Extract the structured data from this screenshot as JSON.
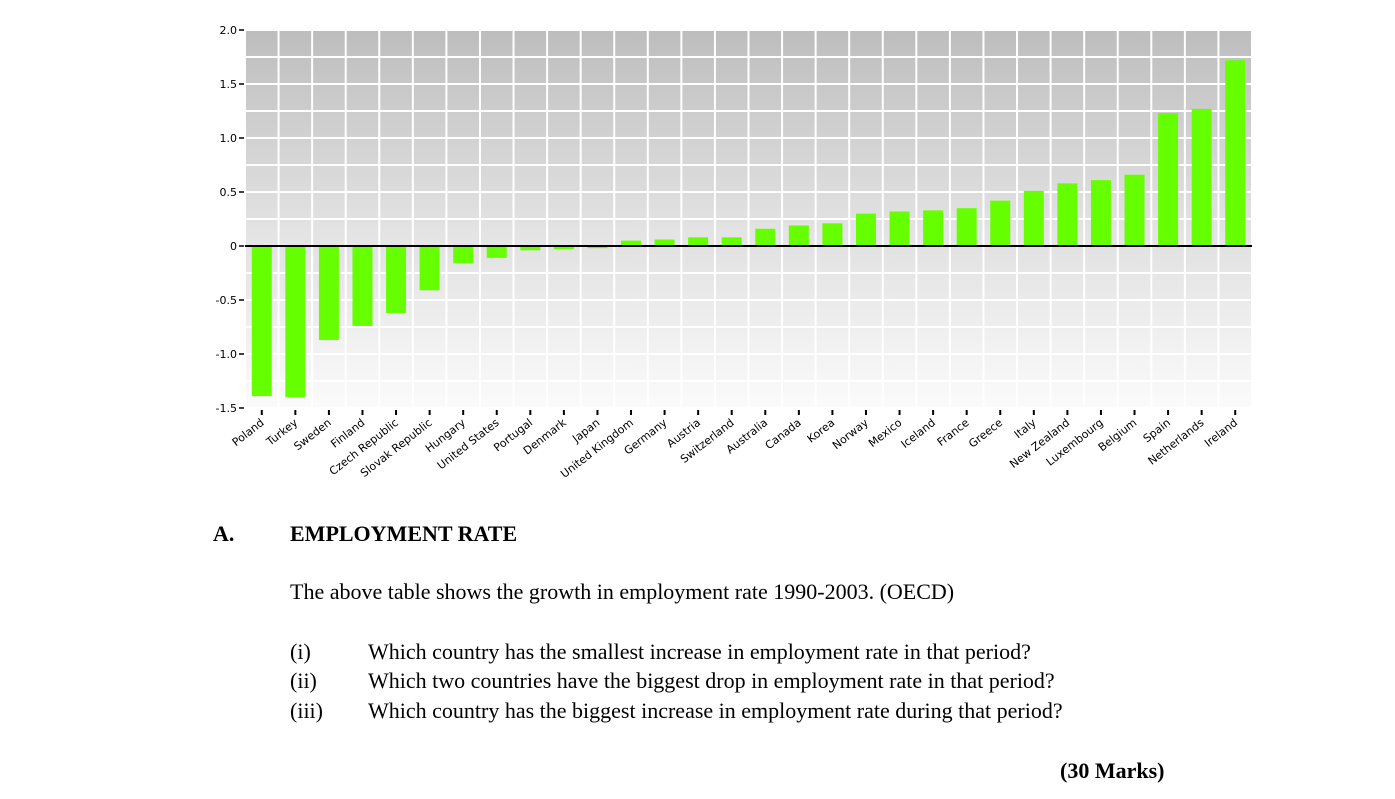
{
  "chart_data": {
    "type": "bar",
    "title": "",
    "xlabel": "",
    "ylabel": "",
    "ylim": [
      -1.5,
      2.0
    ],
    "yticks": [
      "2.0",
      "1.5",
      "1.0",
      "0.5",
      "0",
      "-0.5",
      "-1.0",
      "-1.5"
    ],
    "ytick_values": [
      2.0,
      1.5,
      1.0,
      0.5,
      0,
      -0.5,
      -1.0,
      -1.5
    ],
    "grid": true,
    "bar_color": "#66ff00",
    "categories": [
      "Poland",
      "Turkey",
      "Sweden",
      "Finland",
      "Czech Republic",
      "Slovak Republic",
      "Hungary",
      "United States",
      "Portugal",
      "Denmark",
      "Japan",
      "United Kingdom",
      "Germany",
      "Austria",
      "Switzerland",
      "Australia",
      "Canada",
      "Korea",
      "Norway",
      "Mexico",
      "Iceland",
      "France",
      "Greece",
      "Italy",
      "New Zealand",
      "Luxembourg",
      "Belgium",
      "Spain",
      "Netherlands",
      "Ireland"
    ],
    "values": [
      -1.39,
      -1.4,
      -0.87,
      -0.74,
      -0.62,
      -0.41,
      -0.16,
      -0.11,
      -0.04,
      -0.03,
      -0.02,
      0.05,
      0.06,
      0.08,
      0.08,
      0.16,
      0.19,
      0.21,
      0.3,
      0.32,
      0.33,
      0.35,
      0.42,
      0.51,
      0.58,
      0.61,
      0.66,
      1.23,
      1.27,
      1.72
    ]
  },
  "section": {
    "letter": "A.",
    "heading": "EMPLOYMENT RATE",
    "intro": "The above table shows the growth in employment rate 1990-2003. (OECD)",
    "questions": [
      {
        "num": "(i)",
        "text": "Which country has the smallest increase in employment rate in that period?"
      },
      {
        "num": "(ii)",
        "text": "Which two countries have the biggest drop in employment rate in that period?"
      },
      {
        "num": "(iii)",
        "text": "Which country has the biggest increase in employment rate during that period?"
      }
    ],
    "marks": "(30 Marks)"
  }
}
